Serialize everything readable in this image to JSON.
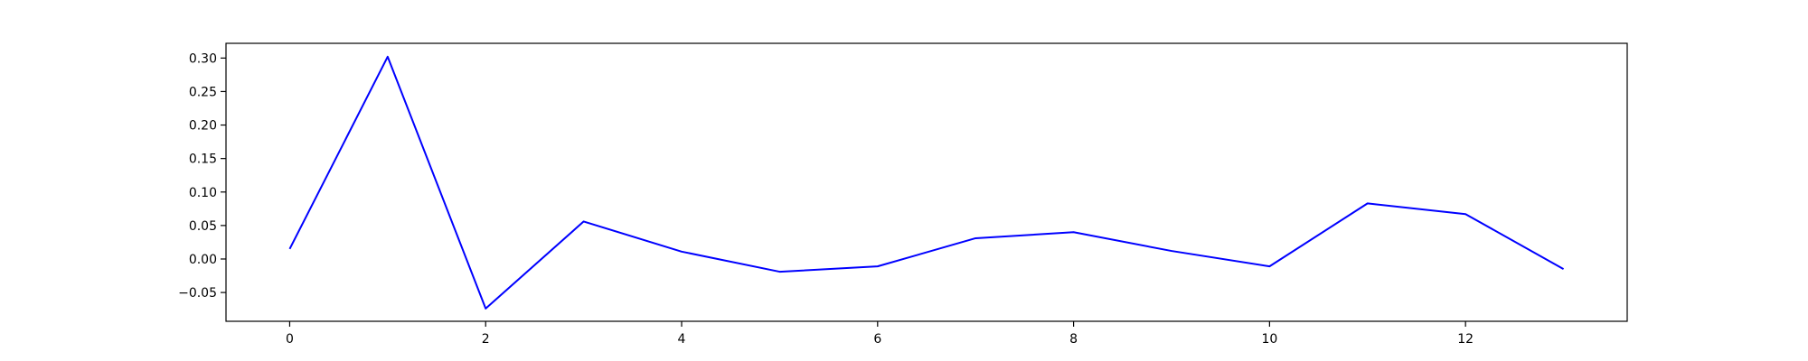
{
  "chart_data": {
    "type": "line",
    "title": "",
    "xlabel": "",
    "ylabel": "",
    "xlim": [
      -0.65,
      13.65
    ],
    "ylim": [
      -0.093,
      0.322
    ],
    "x_ticks": [
      0,
      2,
      4,
      6,
      8,
      10,
      12
    ],
    "x_tick_labels": [
      "0",
      "2",
      "4",
      "6",
      "8",
      "10",
      "12"
    ],
    "y_ticks": [
      -0.05,
      0.0,
      0.05,
      0.1,
      0.15,
      0.2,
      0.25,
      0.3
    ],
    "y_tick_labels": [
      "−0.05",
      "0.00",
      "0.05",
      "0.10",
      "0.15",
      "0.20",
      "0.25",
      "0.30"
    ],
    "grid": false,
    "series": [
      {
        "color": "#0000ff",
        "x": [
          0,
          1,
          2,
          3,
          4,
          5,
          6,
          7,
          8,
          9,
          10,
          11,
          12,
          13
        ],
        "values": [
          0.015,
          0.302,
          -0.074,
          0.056,
          0.011,
          -0.019,
          -0.011,
          0.031,
          0.04,
          0.012,
          -0.011,
          0.083,
          0.067,
          -0.015
        ]
      }
    ]
  }
}
